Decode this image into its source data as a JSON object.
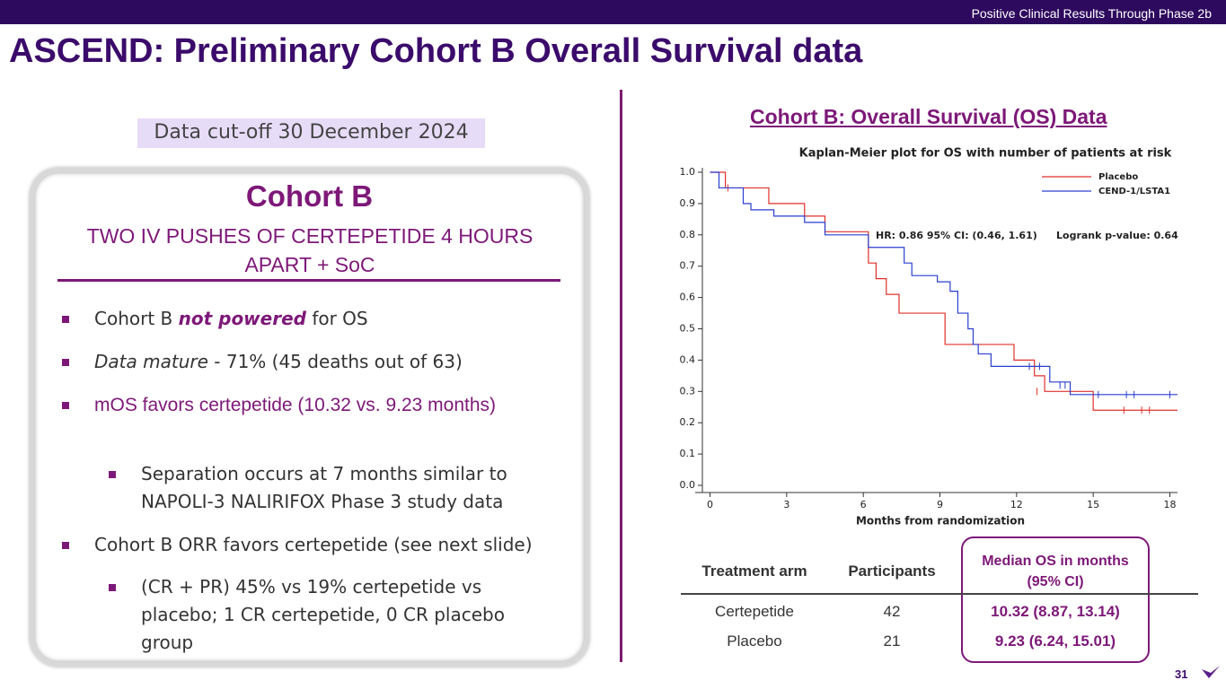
{
  "header": {
    "banner": "Positive Clinical Results Through Phase 2b",
    "title": "ASCEND: Preliminary Cohort B Overall Survival data"
  },
  "left": {
    "cutoff": "Data cut-off 30 December 2024",
    "box_title": "Cohort B",
    "box_subtitle": "TWO IV PUSHES OF CERTEPETIDE 4 HOURS APART + SoC",
    "bullets": [
      {
        "level": 1,
        "segments": [
          "Cohort B",
          "not powered",
          "for OS"
        ]
      },
      {
        "level": 1,
        "segments": [
          "Data mature",
          "- 71% (45 deaths out of 63)"
        ]
      },
      {
        "level": 1,
        "segments": [
          "mOS favors certepetide (10.32 vs. 9.23 months)"
        ]
      },
      {
        "level": 2,
        "segments": [
          "Separation occurs at 7 months similar to NAPOLI-3 NALIRIFOX Phase 3 study data"
        ]
      },
      {
        "level": 1,
        "segments": [
          "Cohort B ORR favors certepetide (see next slide)"
        ]
      },
      {
        "level": 2,
        "segments": [
          "(CR + PR) 45% vs 19% certepetide vs placebo; 1 CR certepetide, 0 CR placebo group"
        ]
      }
    ]
  },
  "right_title": "Cohort B: Overall Survival (OS) Data",
  "chart_data": {
    "type": "step",
    "title": "Kaplan-Meier plot for OS with number of patients at risk",
    "x_label": "Months from randomization",
    "annotations": [
      "HR: 0.86  95% CI: (0.46, 1.61)",
      "Logrank p-value:  0.64"
    ],
    "xlim": [
      -0.3,
      18.3
    ],
    "xticks": [
      0,
      3,
      6,
      9,
      12,
      15,
      18
    ],
    "ylim": [
      0,
      1
    ],
    "yticks": [
      {
        "value": 0,
        "label": "0.0"
      },
      0.1,
      0.2,
      0.3,
      0.4,
      0.5,
      0.6,
      0.7,
      0.8,
      0.9,
      {
        "value": 1,
        "label": "1.0"
      }
    ],
    "legend": "top-right",
    "series": [
      {
        "name": "Placebo",
        "color": "#e0302a",
        "x": [
          0,
          0.6,
          2.3,
          3.7,
          4.5,
          6.2,
          6.5,
          6.9,
          7.4,
          9.2,
          11.9,
          12.7,
          13.1,
          15.0,
          18.3
        ],
        "values": [
          1.0,
          0.95,
          0.9,
          0.86,
          0.81,
          0.71,
          0.66,
          0.61,
          0.55,
          0.45,
          0.4,
          0.35,
          0.3,
          0.24,
          0.24
        ],
        "censored": {
          "x": [
            0.7,
            12.8,
            16.2,
            16.9,
            17.2
          ],
          "y": [
            0.95,
            0.3,
            0.24,
            0.24,
            0.24
          ]
        }
      },
      {
        "name": "CEND-1/LSTA1",
        "color": "#2a3ed0",
        "x": [
          0,
          0.35,
          1.3,
          1.6,
          2.5,
          3.7,
          4.5,
          6.2,
          7.6,
          7.9,
          8.9,
          9.4,
          9.7,
          10.1,
          10.3,
          10.5,
          11.0,
          13.3,
          14.1,
          18.3
        ],
        "values": [
          1.0,
          0.95,
          0.9,
          0.88,
          0.86,
          0.84,
          0.8,
          0.76,
          0.71,
          0.67,
          0.65,
          0.62,
          0.55,
          0.5,
          0.45,
          0.42,
          0.38,
          0.33,
          0.29,
          0.29
        ],
        "censored": {
          "x": [
            12.5,
            12.9,
            13.7,
            13.9,
            15.2,
            16.3,
            16.6,
            18.0
          ],
          "y": [
            0.38,
            0.38,
            0.32,
            0.32,
            0.29,
            0.29,
            0.29,
            0.29
          ]
        }
      }
    ]
  },
  "table": {
    "header": [
      "Treatment arm",
      "Participants",
      "Median OS in months (95% CI)"
    ],
    "rows": [
      [
        "Certepetide",
        "42",
        "10.32 (8.87, 13.14)"
      ],
      [
        "Placebo",
        "21",
        "9.23 (6.24, 15.01)"
      ]
    ]
  },
  "page_number": "31"
}
